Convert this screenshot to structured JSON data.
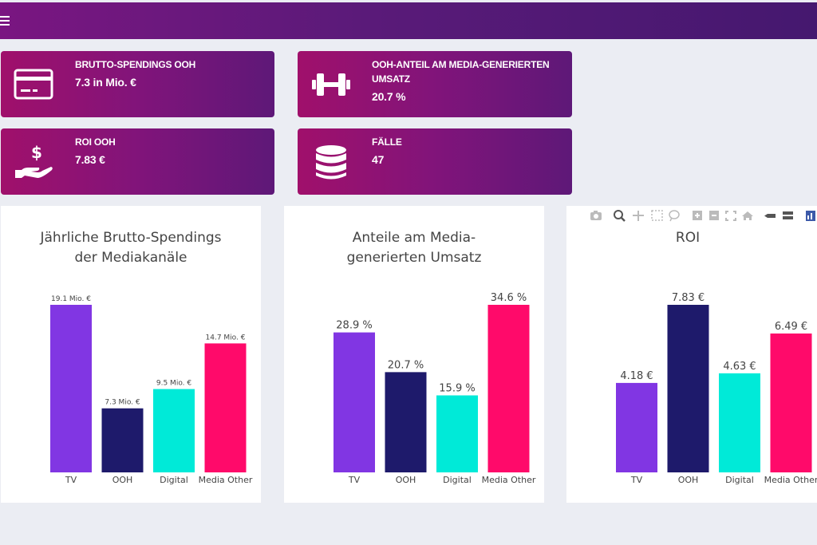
{
  "topbar": {
    "menu_icon": "hamburger-menu-icon"
  },
  "kpis": [
    {
      "icon": "credit-card-icon",
      "label": "BRUTTO-SPENDINGS OOH",
      "value": "7.3 in Mio. €"
    },
    {
      "icon": "dumbbell-icon",
      "label": "OOH-ANTEIL AM MEDIA-GENERIERTEN UMSATZ",
      "value": "20.7 %"
    },
    {
      "icon": "hand-dollar-icon",
      "label": "ROI OOH",
      "value": "7.83 €"
    },
    {
      "icon": "database-icon",
      "label": "FÄLLE",
      "value": "47"
    }
  ],
  "modebar": [
    "camera-icon",
    "zoom-icon",
    "pan-icon",
    "box-select-icon",
    "lasso-icon",
    "zoom-in-icon",
    "zoom-out-icon",
    "autoscale-icon",
    "reset-axes-icon",
    "spike-lines-icon",
    "compare-hover-icon",
    "plotly-logo-icon"
  ],
  "chart_data": [
    {
      "type": "bar",
      "title": "Jährliche Brutto-Spendings\nder Mediakanäle",
      "categories": [
        "TV",
        "OOH",
        "Digital",
        "Media Other"
      ],
      "values": [
        19.1,
        7.3,
        9.5,
        14.7
      ],
      "labels": [
        "19.1 Mio. €",
        "7.3 Mio. €",
        "9.5 Mio. €",
        "14.7 Mio. €"
      ],
      "colors": [
        "#8136e3",
        "#1e1a6b",
        "#00ead8",
        "#ff0a6a"
      ],
      "ylim": [
        0,
        19.1
      ]
    },
    {
      "type": "bar",
      "title": "Anteile am Media-\ngenerierten Umsatz",
      "categories": [
        "TV",
        "OOH",
        "Digital",
        "Media Other"
      ],
      "values": [
        28.9,
        20.7,
        15.9,
        34.6
      ],
      "labels": [
        "28.9 %",
        "20.7 %",
        "15.9 %",
        "34.6 %"
      ],
      "colors": [
        "#8136e3",
        "#1e1a6b",
        "#00ead8",
        "#ff0a6a"
      ],
      "ylim": [
        0,
        34.6
      ]
    },
    {
      "type": "bar",
      "title": "ROI",
      "categories": [
        "TV",
        "OOH",
        "Digital",
        "Media Other"
      ],
      "values": [
        4.18,
        7.83,
        4.63,
        6.49
      ],
      "labels": [
        "4.18 €",
        "7.83 €",
        "4.63 €",
        "6.49 €"
      ],
      "colors": [
        "#8136e3",
        "#1e1a6b",
        "#00ead8",
        "#ff0a6a"
      ],
      "ylim": [
        0,
        7.83
      ]
    }
  ]
}
